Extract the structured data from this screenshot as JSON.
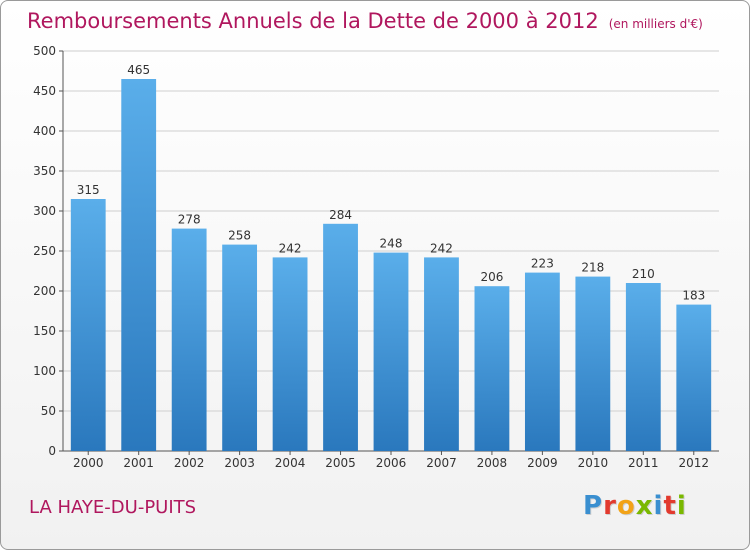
{
  "chart_data": {
    "type": "bar",
    "title": "Remboursements Annuels de la Dette de 2000 à 2012",
    "subtitle": "(en milliers d'€)",
    "xlabel": "",
    "ylabel": "",
    "categories": [
      "2000",
      "2001",
      "2002",
      "2003",
      "2004",
      "2005",
      "2006",
      "2007",
      "2008",
      "2009",
      "2010",
      "2011",
      "2012"
    ],
    "values": [
      315,
      465,
      278,
      258,
      242,
      284,
      248,
      242,
      206,
      223,
      218,
      210,
      183
    ],
    "ylim": [
      0,
      500
    ],
    "yticks": [
      0,
      50,
      100,
      150,
      200,
      250,
      300,
      350,
      400,
      450,
      500
    ],
    "grid": true,
    "legend": "none"
  },
  "footer": {
    "commune": "LA HAYE-DU-PUITS",
    "logo_letters": [
      "P",
      "r",
      "o",
      "x",
      "i",
      "t",
      "i"
    ],
    "logo_colors": [
      "#3a8fd0",
      "#e23a2e",
      "#f2a317",
      "#7ab800",
      "#3a8fd0",
      "#e23a2e",
      "#7ab800"
    ]
  },
  "colors": {
    "bar_top": "#5aaeea",
    "bar_bottom": "#2a78bd",
    "title": "#b0175e",
    "grid": "#cfcfcf"
  }
}
